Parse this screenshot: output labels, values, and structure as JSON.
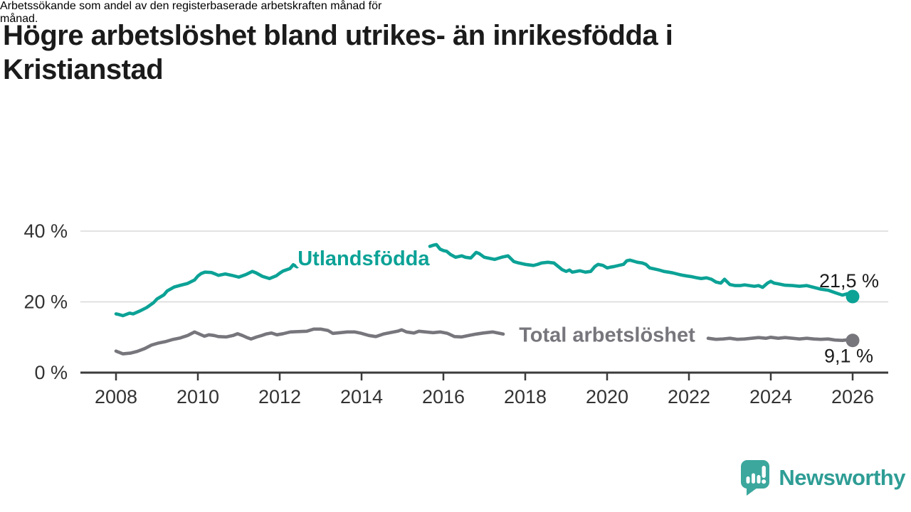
{
  "header": {
    "title": "Högre arbetslöshet bland utrikes- än inrikesfödda i Kristianstad",
    "title_lines": [
      "Högre arbetslöshet bland utrikes- än inrikesfödda i",
      "Kristianstad"
    ],
    "subtitle": "Arbetssökande som andel av den registerbaserade arbetskraften månad för månad.",
    "subtitle_lines": [
      "Arbetssökande som andel av den registerbaserade arbetskraften månad för",
      "månad."
    ]
  },
  "chart_data": {
    "type": "line",
    "title": "",
    "xlabel": "",
    "ylabel": "",
    "x_axis": {
      "ticks": [
        2008,
        2010,
        2012,
        2014,
        2016,
        2018,
        2020,
        2022,
        2024,
        2026
      ],
      "range": [
        2007.15,
        2026.9
      ]
    },
    "y_axis": {
      "ticks": [
        0,
        20,
        40
      ],
      "tick_labels": [
        "0 %",
        "20 %",
        "40 %"
      ],
      "range": [
        0,
        42
      ],
      "grid": true
    },
    "colors": {
      "grid": "#d8d8d8",
      "axis": "#3b3b3b",
      "tick_text": "#333333",
      "value_text": "#1b1b1b"
    },
    "legend_position": "inline-labels",
    "series": [
      {
        "name": "Utlandsfödda",
        "color": "#0ca296",
        "end_label": "21,5 %",
        "end_value": 21.5,
        "label_anchor": {
          "x": 2014.05,
          "y": 32.4
        },
        "segments": [
          [
            [
              2008.0,
              16.6
            ],
            [
              2008.08,
              16.4
            ],
            [
              2008.17,
              16.1
            ],
            [
              2008.33,
              16.8
            ],
            [
              2008.42,
              16.6
            ],
            [
              2008.58,
              17.4
            ],
            [
              2008.75,
              18.4
            ],
            [
              2008.92,
              19.8
            ],
            [
              2009.0,
              20.8
            ],
            [
              2009.17,
              22.0
            ],
            [
              2009.25,
              23.1
            ],
            [
              2009.42,
              24.2
            ],
            [
              2009.58,
              24.7
            ],
            [
              2009.75,
              25.2
            ],
            [
              2009.92,
              26.2
            ],
            [
              2010.0,
              27.3
            ],
            [
              2010.08,
              28.0
            ],
            [
              2010.17,
              28.4
            ],
            [
              2010.33,
              28.3
            ],
            [
              2010.42,
              27.9
            ],
            [
              2010.5,
              27.5
            ],
            [
              2010.67,
              27.9
            ],
            [
              2010.83,
              27.5
            ],
            [
              2011.0,
              27.0
            ],
            [
              2011.17,
              27.7
            ],
            [
              2011.33,
              28.6
            ],
            [
              2011.42,
              28.2
            ],
            [
              2011.58,
              27.2
            ],
            [
              2011.75,
              26.6
            ],
            [
              2011.92,
              27.4
            ],
            [
              2012.0,
              28.1
            ],
            [
              2012.08,
              28.7
            ],
            [
              2012.25,
              29.4
            ],
            [
              2012.33,
              30.5
            ],
            [
              2012.42,
              29.9
            ],
            [
              2012.5,
              30.3
            ],
            [
              2012.58,
              30.0
            ],
            [
              2012.75,
              30.3
            ]
          ],
          [
            [
              2015.67,
              35.7
            ],
            [
              2015.75,
              36.0
            ],
            [
              2015.83,
              36.2
            ],
            [
              2015.92,
              34.9
            ],
            [
              2016.0,
              34.5
            ],
            [
              2016.08,
              34.3
            ],
            [
              2016.17,
              33.4
            ],
            [
              2016.3,
              32.6
            ],
            [
              2016.45,
              33.0
            ],
            [
              2016.54,
              32.6
            ],
            [
              2016.67,
              32.4
            ],
            [
              2016.8,
              34.0
            ],
            [
              2016.88,
              33.6
            ],
            [
              2017.0,
              32.6
            ],
            [
              2017.08,
              32.4
            ],
            [
              2017.25,
              32.0
            ],
            [
              2017.42,
              32.6
            ],
            [
              2017.58,
              33.0
            ],
            [
              2017.72,
              31.4
            ],
            [
              2017.84,
              31.0
            ],
            [
              2018.0,
              30.6
            ],
            [
              2018.2,
              30.3
            ],
            [
              2018.3,
              30.6
            ],
            [
              2018.4,
              31.0
            ],
            [
              2018.55,
              31.2
            ],
            [
              2018.7,
              31.0
            ],
            [
              2018.9,
              29.1
            ],
            [
              2019.0,
              28.6
            ],
            [
              2019.08,
              29.0
            ],
            [
              2019.15,
              28.4
            ],
            [
              2019.24,
              28.6
            ],
            [
              2019.33,
              28.8
            ],
            [
              2019.47,
              28.4
            ],
            [
              2019.6,
              28.6
            ],
            [
              2019.7,
              30.0
            ],
            [
              2019.78,
              30.6
            ],
            [
              2019.9,
              30.3
            ],
            [
              2020.0,
              29.6
            ],
            [
              2020.08,
              29.8
            ],
            [
              2020.17,
              30.0
            ],
            [
              2020.28,
              30.3
            ],
            [
              2020.4,
              30.6
            ],
            [
              2020.48,
              31.6
            ],
            [
              2020.56,
              31.8
            ],
            [
              2020.65,
              31.5
            ],
            [
              2020.74,
              31.2
            ],
            [
              2020.86,
              31.0
            ],
            [
              2020.95,
              30.6
            ],
            [
              2021.04,
              29.6
            ],
            [
              2021.16,
              29.3
            ],
            [
              2021.27,
              29.0
            ],
            [
              2021.39,
              28.6
            ],
            [
              2021.5,
              28.4
            ],
            [
              2021.6,
              28.2
            ],
            [
              2021.74,
              27.8
            ],
            [
              2021.86,
              27.5
            ],
            [
              2021.96,
              27.3
            ],
            [
              2022.08,
              27.1
            ],
            [
              2022.2,
              26.8
            ],
            [
              2022.3,
              26.6
            ],
            [
              2022.43,
              26.8
            ],
            [
              2022.55,
              26.4
            ],
            [
              2022.66,
              25.6
            ],
            [
              2022.78,
              25.3
            ],
            [
              2022.87,
              26.4
            ],
            [
              2023.0,
              24.9
            ],
            [
              2023.13,
              24.6
            ],
            [
              2023.25,
              24.6
            ],
            [
              2023.36,
              24.8
            ],
            [
              2023.48,
              24.6
            ],
            [
              2023.6,
              24.4
            ],
            [
              2023.7,
              24.6
            ],
            [
              2023.8,
              24.1
            ],
            [
              2023.92,
              25.3
            ],
            [
              2024.0,
              25.8
            ],
            [
              2024.08,
              25.3
            ],
            [
              2024.18,
              25.1
            ],
            [
              2024.35,
              24.7
            ],
            [
              2024.53,
              24.6
            ],
            [
              2024.7,
              24.4
            ],
            [
              2024.88,
              24.6
            ],
            [
              2025.05,
              24.1
            ],
            [
              2025.22,
              23.6
            ],
            [
              2025.4,
              23.3
            ],
            [
              2025.57,
              22.6
            ],
            [
              2025.75,
              21.9
            ],
            [
              2025.87,
              22.3
            ],
            [
              2026.0,
              21.5
            ]
          ]
        ]
      },
      {
        "name": "Total arbetslöshet",
        "color": "#77767c",
        "end_label": "9,1 %",
        "end_value": 9.1,
        "label_anchor": {
          "x": 2020.0,
          "y": 10.8
        },
        "segments": [
          [
            [
              2008.0,
              6.1
            ],
            [
              2008.17,
              5.3
            ],
            [
              2008.35,
              5.5
            ],
            [
              2008.52,
              6.0
            ],
            [
              2008.7,
              6.8
            ],
            [
              2008.87,
              7.8
            ],
            [
              2009.05,
              8.4
            ],
            [
              2009.22,
              8.8
            ],
            [
              2009.4,
              9.4
            ],
            [
              2009.57,
              9.8
            ],
            [
              2009.75,
              10.5
            ],
            [
              2009.92,
              11.5
            ],
            [
              2010.04,
              10.9
            ],
            [
              2010.16,
              10.3
            ],
            [
              2010.27,
              10.7
            ],
            [
              2010.4,
              10.5
            ],
            [
              2010.5,
              10.2
            ],
            [
              2010.7,
              10.1
            ],
            [
              2010.86,
              10.5
            ],
            [
              2010.97,
              11.0
            ],
            [
              2011.09,
              10.5
            ],
            [
              2011.2,
              9.9
            ],
            [
              2011.3,
              9.5
            ],
            [
              2011.44,
              10.1
            ],
            [
              2011.56,
              10.5
            ],
            [
              2011.66,
              10.9
            ],
            [
              2011.8,
              11.2
            ],
            [
              2011.93,
              10.7
            ],
            [
              2012.08,
              11.0
            ],
            [
              2012.26,
              11.5
            ],
            [
              2012.45,
              11.6
            ],
            [
              2012.66,
              11.7
            ],
            [
              2012.83,
              12.3
            ],
            [
              2013.0,
              12.3
            ],
            [
              2013.18,
              11.9
            ],
            [
              2013.3,
              11.1
            ],
            [
              2013.48,
              11.3
            ],
            [
              2013.65,
              11.5
            ],
            [
              2013.83,
              11.5
            ],
            [
              2014.0,
              11.1
            ],
            [
              2014.18,
              10.5
            ],
            [
              2014.35,
              10.2
            ],
            [
              2014.53,
              10.9
            ],
            [
              2014.7,
              11.3
            ],
            [
              2014.88,
              11.7
            ],
            [
              2014.98,
              12.1
            ],
            [
              2015.1,
              11.5
            ],
            [
              2015.28,
              11.2
            ],
            [
              2015.4,
              11.7
            ],
            [
              2015.57,
              11.5
            ],
            [
              2015.75,
              11.3
            ],
            [
              2015.92,
              11.5
            ],
            [
              2016.1,
              11.1
            ],
            [
              2016.27,
              10.2
            ],
            [
              2016.45,
              10.1
            ],
            [
              2016.62,
              10.5
            ],
            [
              2016.8,
              10.9
            ],
            [
              2016.97,
              11.2
            ],
            [
              2017.2,
              11.5
            ],
            [
              2017.46,
              10.9
            ]
          ],
          [
            [
              2022.47,
              9.7
            ],
            [
              2022.66,
              9.4
            ],
            [
              2022.83,
              9.5
            ],
            [
              2023.0,
              9.7
            ],
            [
              2023.18,
              9.4
            ],
            [
              2023.36,
              9.5
            ],
            [
              2023.53,
              9.7
            ],
            [
              2023.7,
              9.9
            ],
            [
              2023.88,
              9.7
            ],
            [
              2024.0,
              10.0
            ],
            [
              2024.18,
              9.7
            ],
            [
              2024.35,
              9.9
            ],
            [
              2024.53,
              9.7
            ],
            [
              2024.7,
              9.5
            ],
            [
              2024.88,
              9.7
            ],
            [
              2025.05,
              9.5
            ],
            [
              2025.22,
              9.4
            ],
            [
              2025.4,
              9.5
            ],
            [
              2025.57,
              9.2
            ],
            [
              2025.75,
              9.1
            ],
            [
              2025.9,
              9.3
            ],
            [
              2026.0,
              9.1
            ]
          ]
        ]
      }
    ]
  },
  "branding": {
    "logo_text": "Newsworthy",
    "logo_text_color": "#2e9d95",
    "icon_color": "#3ba79d"
  }
}
